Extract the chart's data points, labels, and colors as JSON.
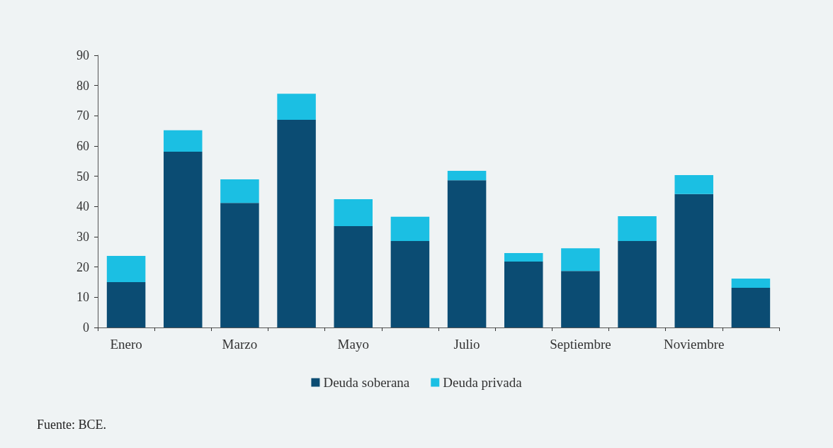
{
  "chart_data": {
    "type": "bar",
    "stacked": true,
    "categories": [
      "Enero",
      null,
      "Marzo",
      null,
      "Mayo",
      null,
      "Julio",
      null,
      "Septiembre",
      null,
      "Noviembre",
      null
    ],
    "series": [
      {
        "name": "Deuda soberana",
        "color": "#0b4c73",
        "values": [
          15.0,
          58.1,
          41.2,
          68.7,
          33.5,
          28.6,
          48.7,
          21.8,
          18.7,
          28.6,
          44.1,
          13.1
        ]
      },
      {
        "name": "Deuda privada",
        "color": "#1bbfe3",
        "values": [
          8.7,
          7.1,
          7.8,
          8.6,
          8.9,
          8.0,
          3.1,
          2.8,
          7.5,
          8.2,
          6.3,
          3.1
        ]
      }
    ],
    "ylim": [
      0,
      90
    ],
    "yticks": [
      0,
      10,
      20,
      30,
      40,
      50,
      60,
      70,
      80,
      90
    ],
    "grid": false,
    "legend": "bottom",
    "annotations": [
      "Fuente: BCE."
    ]
  }
}
